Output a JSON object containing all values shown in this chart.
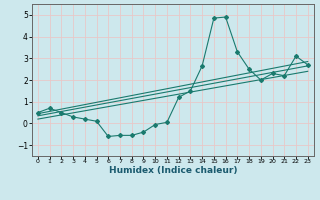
{
  "xlabel": "Humidex (Indice chaleur)",
  "ylabel": "",
  "bg_color": "#cde8ed",
  "grid_color": "#b8d8dd",
  "line_color": "#1a7a6e",
  "x_data": [
    0,
    1,
    2,
    3,
    4,
    5,
    6,
    7,
    8,
    9,
    10,
    11,
    12,
    13,
    14,
    15,
    16,
    17,
    18,
    19,
    20,
    21,
    22,
    23
  ],
  "y_main": [
    0.5,
    0.7,
    0.5,
    0.3,
    0.2,
    0.1,
    -0.6,
    -0.55,
    -0.55,
    -0.4,
    -0.05,
    0.05,
    1.2,
    1.5,
    2.65,
    4.85,
    4.9,
    3.3,
    2.5,
    2.0,
    2.3,
    2.2,
    3.1,
    2.7
  ],
  "reg_line_x": [
    0,
    23
  ],
  "reg_lines": [
    [
      0.35,
      2.65
    ],
    [
      0.2,
      2.4
    ],
    [
      0.45,
      2.85
    ]
  ],
  "ylim": [
    -1.5,
    5.5
  ],
  "xlim": [
    -0.5,
    23.5
  ],
  "yticks": [
    -1,
    0,
    1,
    2,
    3,
    4,
    5
  ],
  "xticks": [
    0,
    1,
    2,
    3,
    4,
    5,
    6,
    7,
    8,
    9,
    10,
    11,
    12,
    13,
    14,
    15,
    16,
    17,
    18,
    19,
    20,
    21,
    22,
    23
  ],
  "xlabel_fontsize": 6.5,
  "xlabel_color": "#1a5a6e",
  "tick_fontsize_x": 4.5,
  "tick_fontsize_y": 5.5
}
